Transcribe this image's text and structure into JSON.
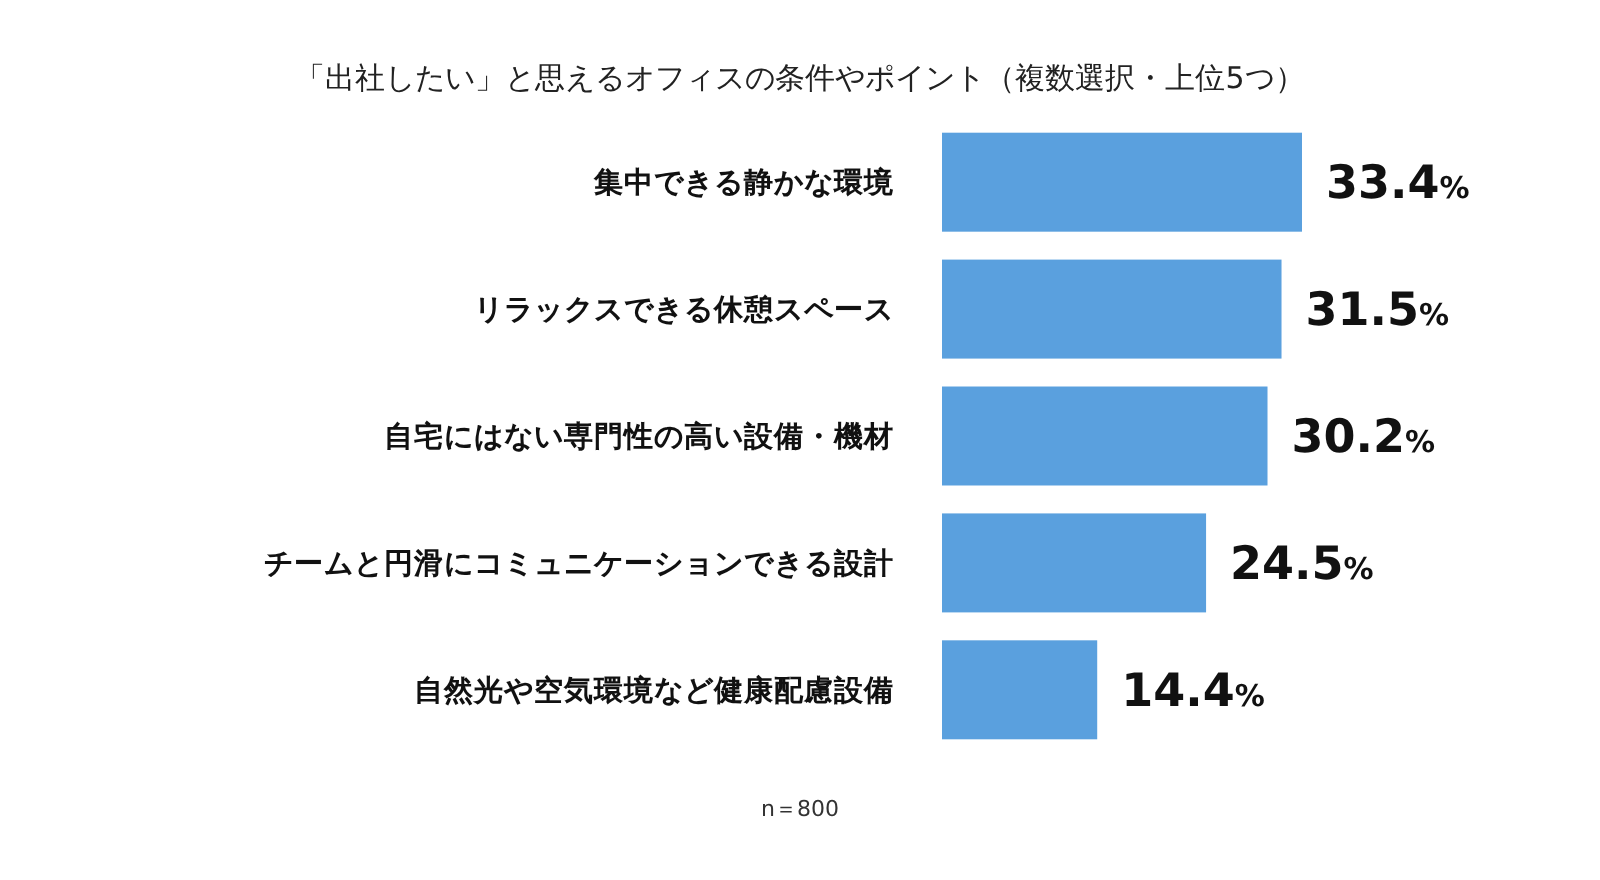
{
  "chart_data": {
    "type": "bar",
    "orientation": "horizontal",
    "title": "「出社したい」と思えるオフィスの条件やポイント（複数選択・上位5つ）",
    "categories": [
      "集中できる静かな環境",
      "リラックスできる休憩スペース",
      "自宅にはない専門性の高い設備・機材",
      "チームと円滑にコミュニケーションできる設計",
      "自然光や空気環境など健康配慮設備"
    ],
    "values": [
      33.4,
      31.5,
      30.2,
      24.5,
      14.4
    ],
    "value_labels": [
      "33.4%",
      "31.5%",
      "30.2%",
      "24.5%",
      "14.4%"
    ],
    "color": "#5aa0de",
    "annotations": [
      "n＝800"
    ]
  }
}
